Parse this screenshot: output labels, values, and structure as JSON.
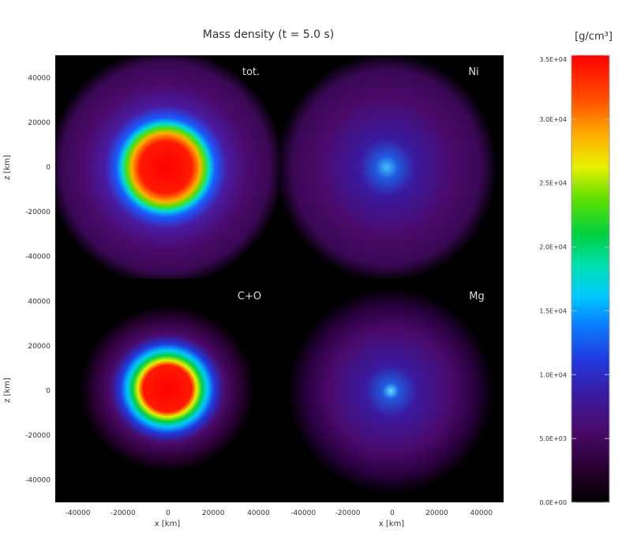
{
  "chart_data": {
    "type": "heatmap",
    "title": "Mass density (t = 5.0 s)",
    "colorbar": {
      "unit_label": "[g/cm³]",
      "min": 0,
      "max": 35000,
      "ticks": [
        "0.0E+00",
        "5.0E+03",
        "1.0E+04",
        "1.5E+04",
        "2.0E+04",
        "2.5E+04",
        "3.0E+04",
        "3.5E+04"
      ],
      "tick_values": [
        0,
        5000,
        10000,
        15000,
        20000,
        25000,
        30000,
        35000
      ],
      "colormap": "rainbow (black-purple-blue-cyan-green-yellow-red)"
    },
    "xlabel": "x [km]",
    "ylabel": "z [km]",
    "xlim": [
      -50000,
      50000
    ],
    "ylim": [
      -50000,
      50000
    ],
    "x_ticks": [
      "-40000",
      "-20000",
      "0",
      "20000",
      "40000"
    ],
    "x_tick_values": [
      -40000,
      -20000,
      0,
      20000,
      40000
    ],
    "y_ticks": [
      "40000",
      "20000",
      "0",
      "-20000",
      "-40000"
    ],
    "y_tick_values": [
      40000,
      20000,
      0,
      -20000,
      -40000
    ],
    "panels": [
      {
        "label": "tot.",
        "peak_density": 35000,
        "core_radius_km": 14000,
        "halo_radius_km": 48000
      },
      {
        "label": "Ni",
        "peak_density": 14000,
        "core_radius_km": 0,
        "halo_radius_km": 40000
      },
      {
        "label": "C+O",
        "peak_density": 35000,
        "core_radius_km": 12000,
        "halo_radius_km": 30000
      },
      {
        "label": "Mg",
        "peak_density": 13000,
        "core_radius_km": 0,
        "halo_radius_km": 36000
      }
    ]
  }
}
